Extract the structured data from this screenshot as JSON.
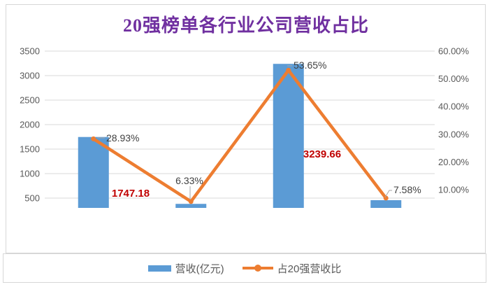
{
  "chart_data": {
    "type": "bar+line combo",
    "title": "20强榜单各行业公司营收占比",
    "grid": true,
    "legend_position": "bottom",
    "colors": {
      "bar": "#5B9BD5",
      "line": "#ED7D31",
      "title": "#7030A0",
      "bar_label": "#C00000",
      "axis_text": "#595959",
      "point_label_text": "#404040",
      "gridline": "#D9D9D9"
    },
    "bars": {
      "name": "营收(亿元)",
      "values": [
        1747.18,
        382.3,
        3239.66,
        457.8
      ],
      "labels": [
        "1747.18",
        "",
        "3239.66",
        ""
      ]
    },
    "line": {
      "name": "占20强营收比",
      "values_pct": [
        28.93,
        6.33,
        53.65,
        7.58
      ],
      "labels": [
        "28.93%",
        "6.33%",
        "53.65%",
        "7.58%"
      ]
    },
    "y_left_axis": {
      "ticks": [
        "3500",
        "3000",
        "2500",
        "2000",
        "1500",
        "1000",
        "500"
      ],
      "max": 3500,
      "tick_step": 500
    },
    "y_right_axis": {
      "ticks": [
        "60.00%",
        "50.00%",
        "40.00%",
        "30.00%",
        "20.00%",
        "10.00%"
      ],
      "max_pct": 60,
      "tick_step_pct": 10
    }
  }
}
